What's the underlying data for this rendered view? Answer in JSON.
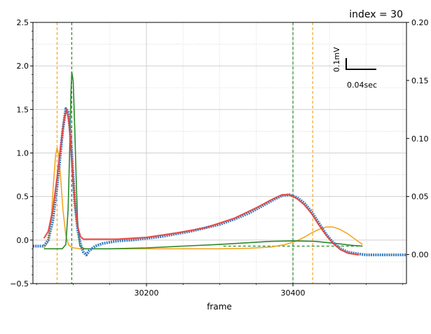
{
  "chart_data": {
    "type": "line",
    "title": "",
    "annotation": "index = 30",
    "xlabel": "frame",
    "ylabel": "",
    "xlim": [
      30045,
      30555
    ],
    "ylim": [
      -0.5,
      2.5
    ],
    "y2lim": [
      -0.025,
      0.2
    ],
    "xticks": [
      {
        "v": 30200,
        "label": "30200"
      },
      {
        "v": 30400,
        "label": "30400"
      }
    ],
    "yticks": [
      {
        "v": -0.5,
        "label": "−0.5"
      },
      {
        "v": 0.0,
        "label": "0.0"
      },
      {
        "v": 0.5,
        "label": "0.5"
      },
      {
        "v": 1.0,
        "label": "1.0"
      },
      {
        "v": 1.5,
        "label": "1.5"
      },
      {
        "v": 2.0,
        "label": "2.0"
      },
      {
        "v": 2.5,
        "label": "2.5"
      }
    ],
    "y2ticks": [
      {
        "v": 0.0,
        "label": "0.00"
      },
      {
        "v": 0.05,
        "label": "0.05"
      },
      {
        "v": 0.1,
        "label": "0.10"
      },
      {
        "v": 0.15,
        "label": "0.15"
      },
      {
        "v": 0.2,
        "label": "0.20"
      }
    ],
    "grid": true,
    "scale_bar": {
      "vertical_label": "0.1mV",
      "horizontal_label": "0.04sec"
    },
    "vlines": [
      {
        "x": 30078,
        "color": "#f5a623",
        "style": "dashed"
      },
      {
        "x": 30098,
        "color": "#2a8a2a",
        "style": "dashed"
      },
      {
        "x": 30400,
        "color": "#2a8a2a",
        "style": "dashed"
      },
      {
        "x": 30427,
        "color": "#f5a623",
        "style": "dashed"
      }
    ],
    "hlines": [
      {
        "x0": 30305,
        "x1": 30495,
        "y": -0.07,
        "color": "#2a8a2a",
        "style": "dashed"
      }
    ],
    "series": [
      {
        "name": "",
        "role": "signal",
        "color": "#3a7ec0",
        "x": [
          30045,
          30060,
          30066,
          30072,
          30078,
          30082,
          30086,
          30090,
          30093,
          30096,
          30099,
          30102,
          30106,
          30110,
          30114,
          30118,
          30122,
          30130,
          30140,
          30160,
          30180,
          30200,
          30220,
          30240,
          30260,
          30280,
          30300,
          30320,
          30340,
          30360,
          30375,
          30385,
          30395,
          30405,
          30415,
          30425,
          30435,
          30445,
          30455,
          30465,
          30475,
          30490,
          30500,
          30520,
          30540,
          30555
        ],
        "y": [
          -0.07,
          -0.07,
          0.0,
          0.22,
          0.62,
          0.95,
          1.28,
          1.51,
          1.47,
          1.25,
          0.85,
          0.45,
          0.12,
          -0.05,
          -0.14,
          -0.17,
          -0.12,
          -0.07,
          -0.04,
          -0.01,
          0.0,
          0.02,
          0.04,
          0.07,
          0.1,
          0.14,
          0.18,
          0.24,
          0.31,
          0.4,
          0.47,
          0.51,
          0.52,
          0.49,
          0.43,
          0.33,
          0.2,
          0.07,
          -0.03,
          -0.1,
          -0.14,
          -0.16,
          -0.17,
          -0.17,
          -0.17,
          -0.17
        ]
      },
      {
        "name": "",
        "role": "fit",
        "color": "#e8413c",
        "x": [
          30060,
          30066,
          30072,
          30078,
          30083,
          30088,
          30091,
          30094,
          30097,
          30100,
          30103,
          30106,
          30110,
          30114,
          30118,
          30130,
          30160,
          30200,
          30240,
          30280,
          30320,
          30350,
          30370,
          30385,
          30395,
          30405,
          30415,
          30425,
          30435,
          30445,
          30455,
          30465,
          30475,
          30490
        ],
        "y": [
          0.02,
          0.1,
          0.34,
          0.72,
          1.08,
          1.41,
          1.5,
          1.38,
          1.06,
          0.68,
          0.36,
          0.15,
          0.04,
          0.01,
          0.01,
          0.01,
          0.01,
          0.03,
          0.08,
          0.14,
          0.25,
          0.37,
          0.46,
          0.52,
          0.52,
          0.48,
          0.41,
          0.31,
          0.18,
          0.06,
          -0.04,
          -0.11,
          -0.15,
          -0.17
        ]
      },
      {
        "name": "",
        "role": "component",
        "color": "#f5a623",
        "x": [
          30060,
          30066,
          30070,
          30073,
          30076,
          30078,
          30080,
          30083,
          30086,
          30090,
          30094,
          30100,
          30110,
          30200,
          30300,
          30340,
          30370,
          30390,
          30405,
          30415,
          30425,
          30435,
          30445,
          30455,
          30465,
          30475,
          30485,
          30495
        ],
        "y": [
          -0.09,
          -0.02,
          0.25,
          0.65,
          0.98,
          1.06,
          0.98,
          0.7,
          0.35,
          0.05,
          -0.06,
          -0.09,
          -0.1,
          -0.1,
          -0.1,
          -0.095,
          -0.08,
          -0.05,
          -0.01,
          0.03,
          0.08,
          0.12,
          0.15,
          0.15,
          0.12,
          0.07,
          0.01,
          -0.05
        ]
      },
      {
        "name": "",
        "role": "component",
        "color": "#2a8a2a",
        "x": [
          30060,
          30085,
          30090,
          30093,
          30095,
          30097,
          30098,
          30100,
          30102,
          30104,
          30106,
          30109,
          30115,
          30150,
          30200,
          30250,
          30300,
          30340,
          30370,
          30400,
          30430,
          30460,
          30480,
          30495
        ],
        "y": [
          -0.1,
          -0.1,
          -0.05,
          0.35,
          1.0,
          1.7,
          1.93,
          1.82,
          1.3,
          0.7,
          0.2,
          -0.07,
          -0.1,
          -0.1,
          -0.09,
          -0.07,
          -0.05,
          -0.03,
          -0.015,
          -0.01,
          -0.015,
          -0.04,
          -0.06,
          -0.07
        ]
      }
    ]
  }
}
